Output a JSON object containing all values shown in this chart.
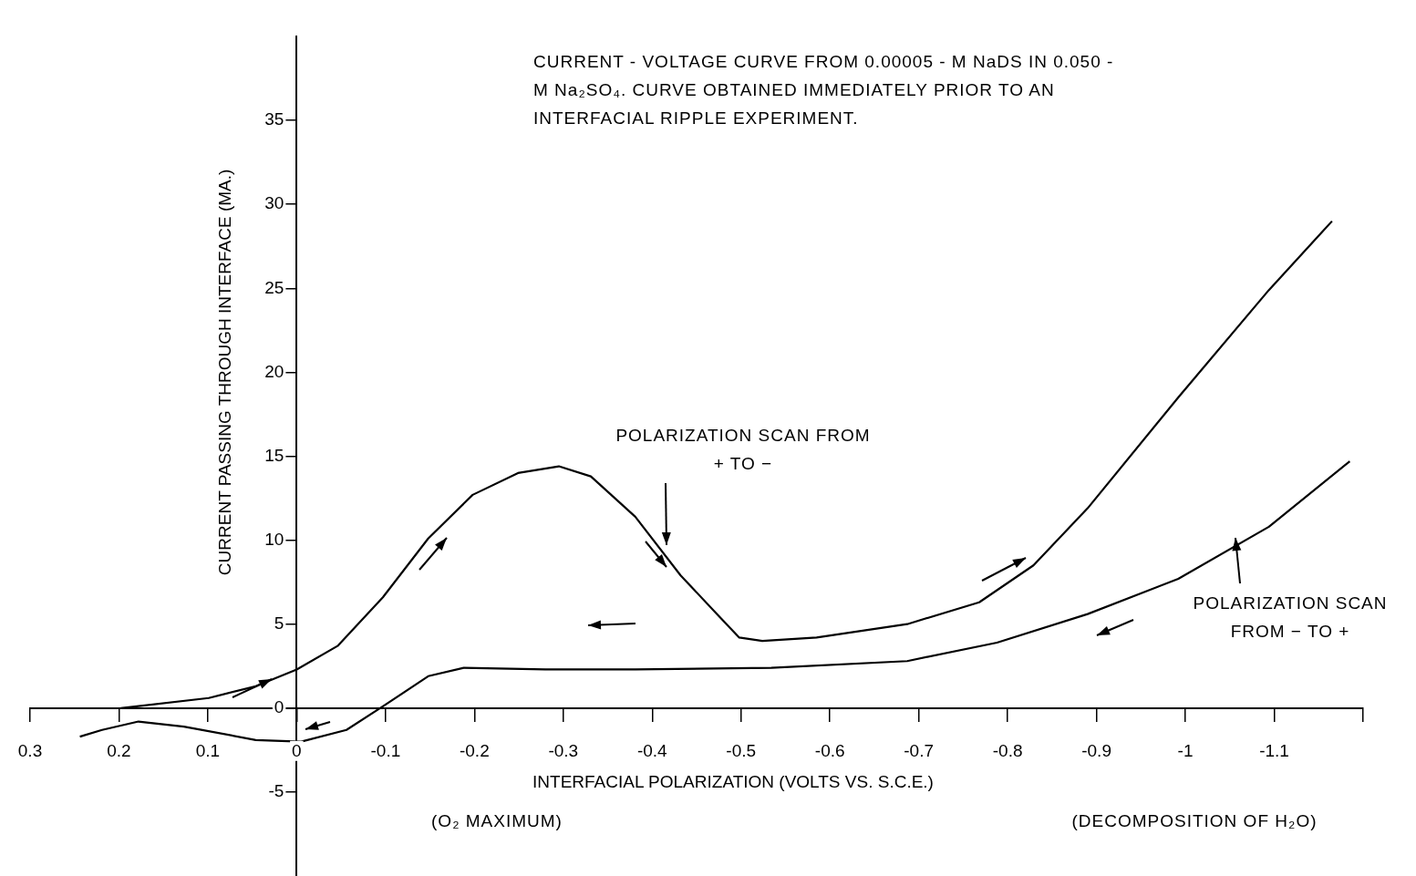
{
  "chart_data": {
    "type": "line",
    "title": "CURRENT - VOLTAGE CURVE FROM 0.00005 - M NaDS IN 0.050 - M Na₂SO₄. CURVE OBTAINED IMMEDIATELY PRIOR TO AN INTERFACIAL RIPPLE EXPERIMENT.",
    "xlabel": "INTERFACIAL POLARIZATION (VOLTS VS. S.C.E.)",
    "ylabel": "CURRENT PASSING THROUGH INTERFACE (MA.)",
    "xlim": [
      0.3,
      -1.2
    ],
    "ylim": [
      -10,
      40
    ],
    "xticks": [
      0.3,
      0.2,
      0.1,
      0,
      -0.1,
      -0.2,
      -0.3,
      -0.4,
      -0.5,
      -0.6,
      -0.7,
      -0.8,
      -0.9,
      -1.0,
      -1.1,
      {
        "value": -1.2,
        "label": null
      }
    ],
    "yticks": [
      -5,
      0,
      5,
      10,
      15,
      20,
      25,
      30,
      35
    ],
    "grid": false,
    "legend": false,
    "marker": "none",
    "line_style": "solid",
    "series": [
      {
        "color": "#000000",
        "x": [
          0.198,
          0.099,
          0.046,
          0,
          -0.046,
          -0.097,
          -0.148,
          -0.198,
          -0.249,
          -0.295,
          -0.331,
          -0.381,
          -0.432,
          -0.473,
          -0.498,
          -0.524,
          -0.585,
          -0.687,
          -0.768,
          -0.829,
          -0.89,
          -0.992,
          -1.094,
          -1.165
        ],
        "values": [
          0,
          0.6,
          1.3,
          2.3,
          3.7,
          6.6,
          10.1,
          12.7,
          14.0,
          14.4,
          13.8,
          11.4,
          7.9,
          5.6,
          4.2,
          4.0,
          4.2,
          5.0,
          6.3,
          8.5,
          11.9,
          18.5,
          24.9,
          29.0
        ]
      },
      {
        "color": "#000000",
        "x": [
          -1.185,
          -1.094,
          -0.992,
          -0.89,
          -0.788,
          -0.687,
          -0.534,
          -0.381,
          -0.28,
          -0.188,
          -0.148,
          -0.097,
          -0.056,
          -0.005,
          0.046,
          0.127,
          0.178,
          0.219,
          0.244
        ],
        "values": [
          14.7,
          10.8,
          7.7,
          5.6,
          3.9,
          2.8,
          2.4,
          2.3,
          2.3,
          2.4,
          1.9,
          0.1,
          -1.3,
          -2.0,
          -1.9,
          -1.1,
          -0.8,
          -1.3,
          -1.7
        ]
      }
    ],
    "annotations": [
      "POLARIZATION SCAN FROM + TO −",
      "POLARIZATION SCAN FROM − TO +",
      "(O₂ MAXIMUM)",
      "(DECOMPOSITION OF H₂O)"
    ]
  }
}
